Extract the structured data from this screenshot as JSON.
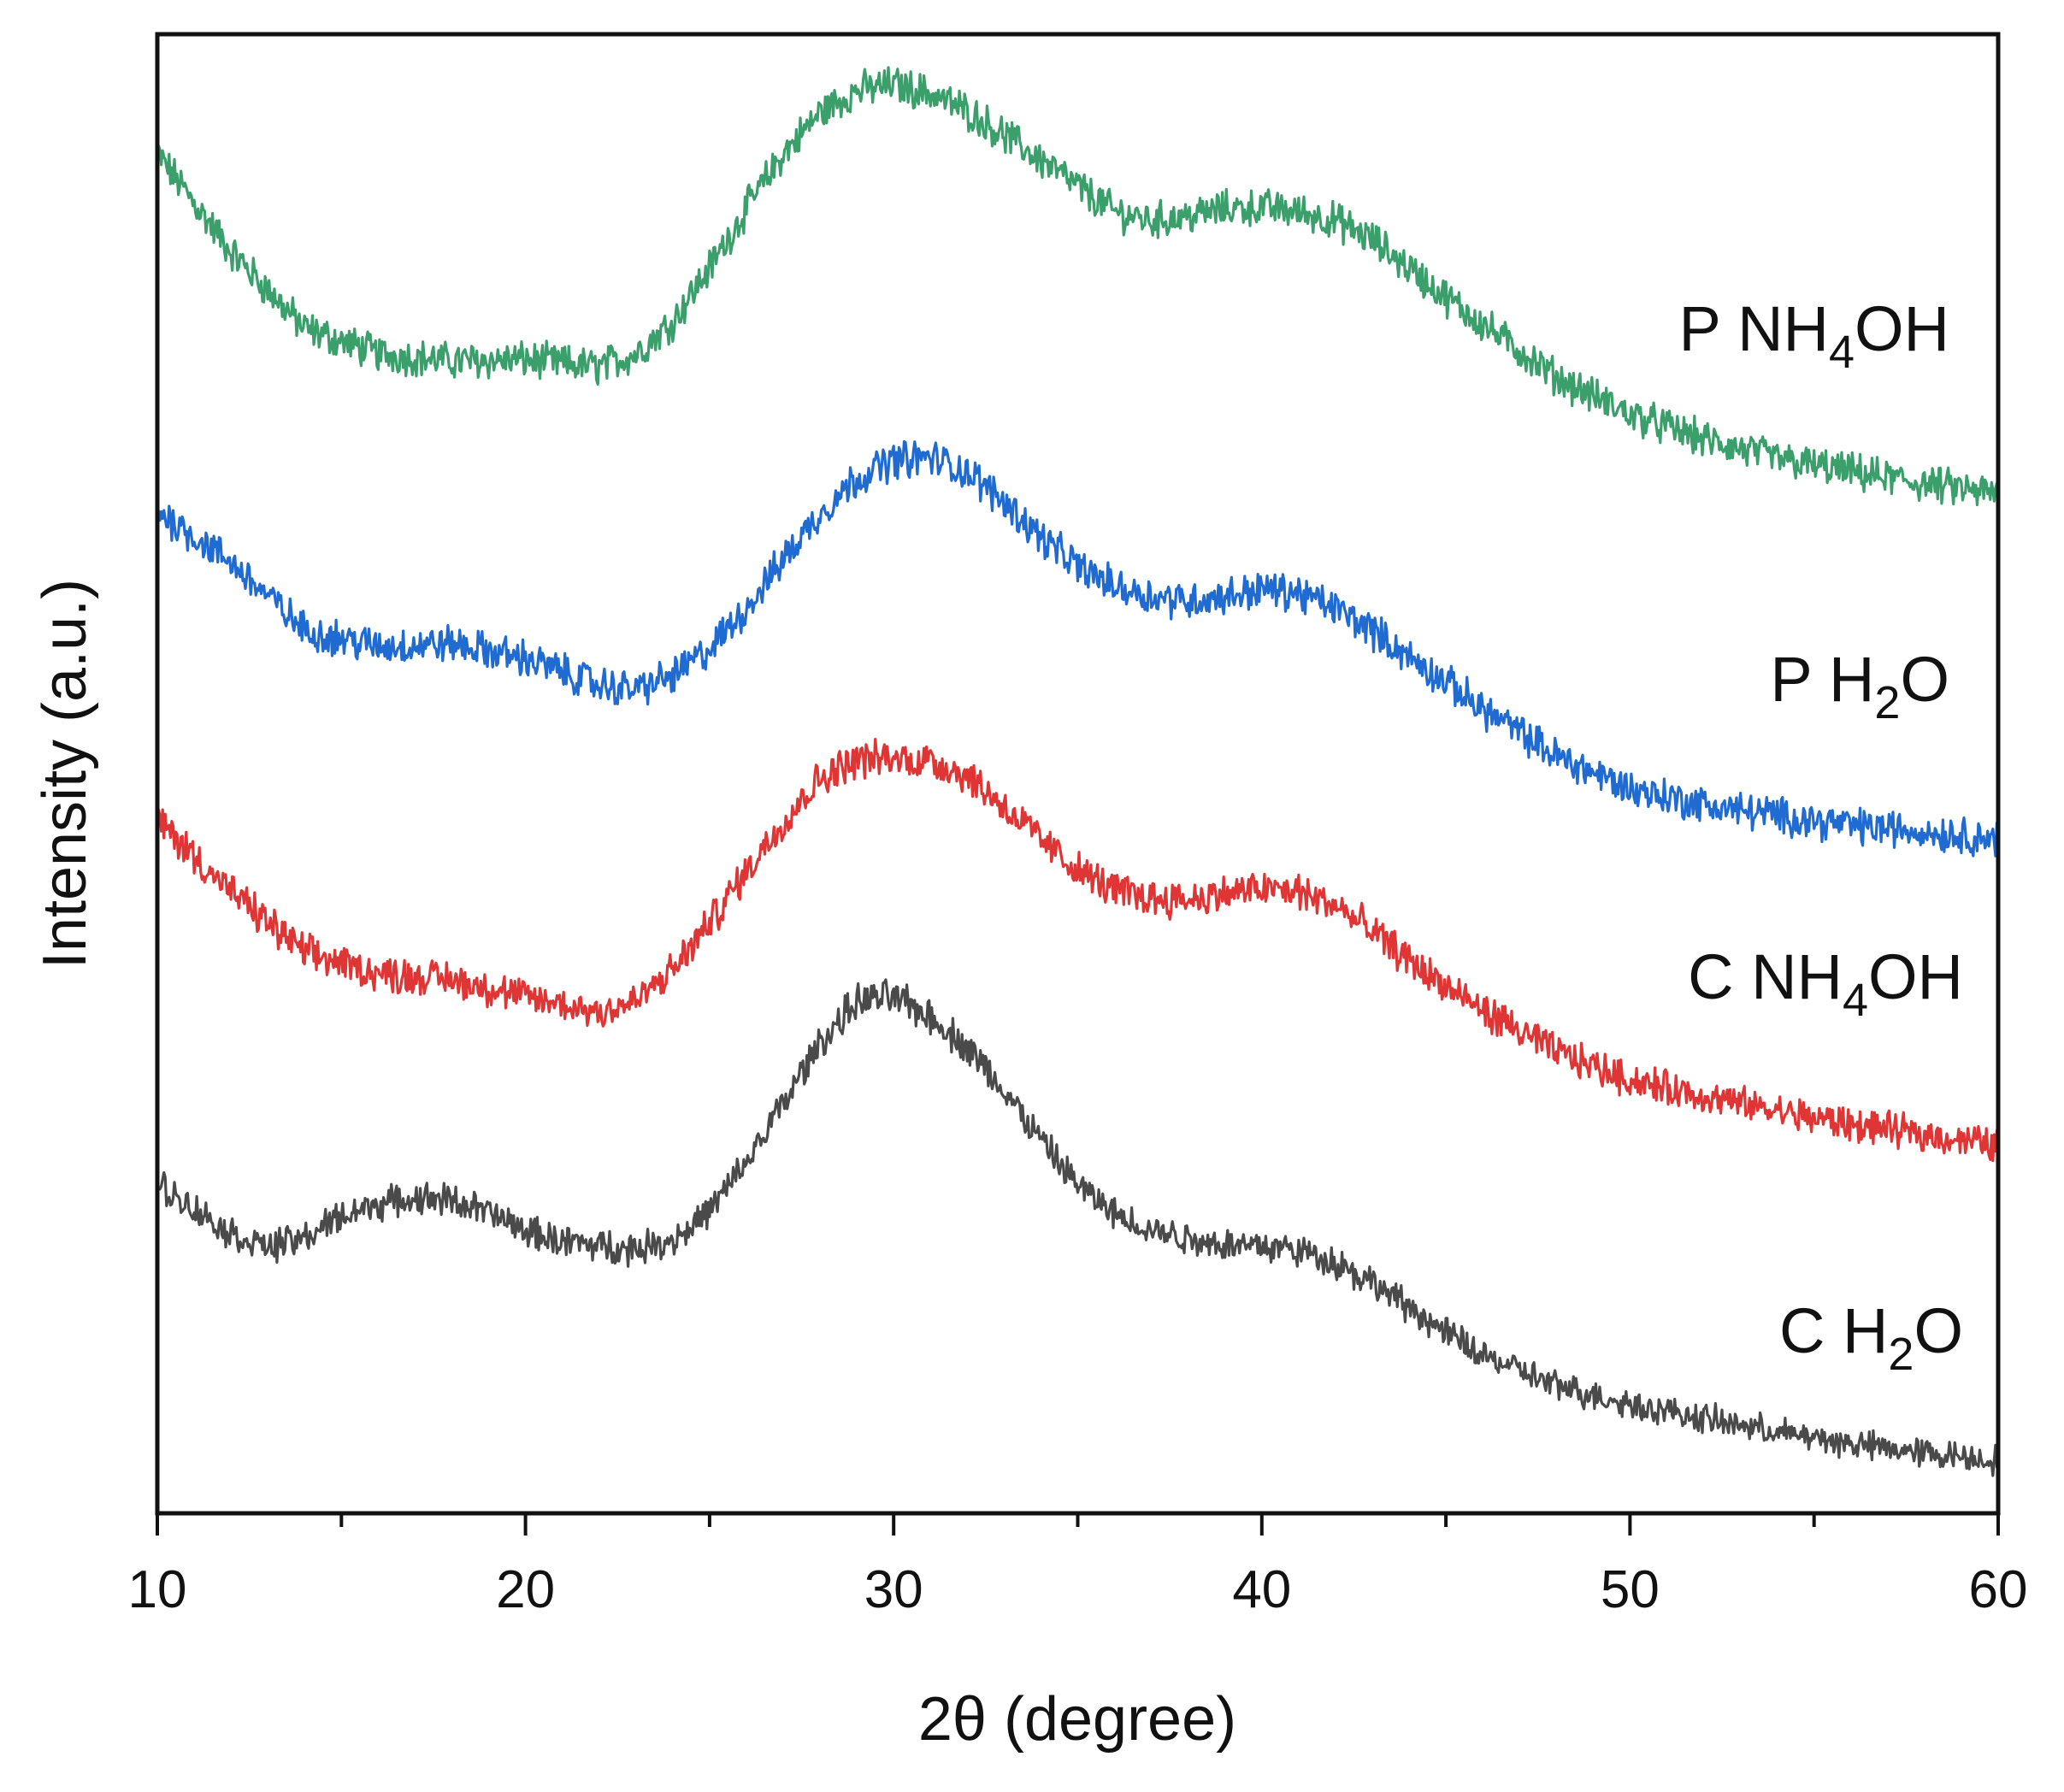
{
  "chart_data": {
    "type": "line",
    "title": "",
    "xlabel": "2θ (degree)",
    "ylabel": "Intensity (a.u.)",
    "xlim": [
      10,
      60
    ],
    "xticks": [
      10,
      20,
      30,
      40,
      50,
      60
    ],
    "ylim": [
      0,
      100
    ],
    "y_ticks_labeled": false,
    "legend_placement": "inline labels at right end of each curve",
    "series": [
      {
        "name": "P NH4OH",
        "label_main": "P NH",
        "label_sub": "4",
        "label_tail": "OH",
        "color": "#3a9f6a",
        "x": [
          10,
          12,
          14,
          16,
          18,
          20,
          22,
          23,
          24,
          25,
          26,
          27,
          28,
          29,
          30,
          31,
          32,
          33,
          34,
          35,
          36,
          37,
          38,
          39,
          40,
          41,
          42,
          43,
          44,
          45,
          46,
          48,
          50,
          52,
          54,
          56,
          58,
          60
        ],
        "y": [
          91.9,
          85.3,
          80.1,
          78.4,
          77.9,
          78.0,
          77.5,
          78.4,
          80.6,
          84.2,
          88.2,
          91.9,
          94.7,
          96.2,
          96.6,
          96.0,
          94.8,
          93.2,
          91.5,
          89.7,
          88.0,
          87.4,
          87.7,
          88.2,
          88.3,
          88.0,
          87.4,
          86.1,
          84.2,
          82.2,
          80.4,
          76.8,
          74.3,
          72.6,
          71.3,
          70.4,
          69.6,
          68.9
        ]
      },
      {
        "name": "P H2O",
        "label_main": "P H",
        "label_sub": "2",
        "label_tail": "O",
        "color": "#1f6bd1",
        "x": [
          10,
          12,
          14,
          16,
          18,
          20,
          22,
          23,
          24,
          25,
          26,
          27,
          28,
          29,
          30,
          31,
          32,
          33,
          34,
          35,
          36,
          37,
          38,
          39,
          40,
          41,
          42,
          43,
          44,
          45,
          46,
          48,
          50,
          52,
          54,
          56,
          58,
          60
        ],
        "y": [
          67.8,
          64.3,
          59.7,
          58.6,
          58.8,
          57.8,
          56.0,
          55.7,
          56.6,
          58.4,
          61.2,
          64.5,
          67.6,
          70.0,
          71.2,
          71.4,
          70.4,
          68.4,
          66.0,
          64.0,
          62.7,
          62.0,
          61.7,
          62.0,
          62.5,
          62.2,
          61.2,
          59.7,
          57.9,
          56.2,
          54.4,
          51.2,
          49.0,
          47.9,
          47.2,
          46.5,
          46.1,
          45.6
        ]
      },
      {
        "name": "C NH4OH",
        "label_main": "C NH",
        "label_sub": "4",
        "label_tail": "OH",
        "color": "#e03535",
        "x": [
          10,
          12,
          14,
          16,
          18,
          20,
          22,
          23,
          24,
          25,
          26,
          27,
          28,
          29,
          30,
          31,
          32,
          33,
          34,
          35,
          36,
          37,
          38,
          39,
          40,
          41,
          42,
          43,
          44,
          45,
          46,
          48,
          50,
          52,
          54,
          56,
          58,
          60
        ],
        "y": [
          46.9,
          42.0,
          37.9,
          36.5,
          36.1,
          34.9,
          33.9,
          34.6,
          36.7,
          39.9,
          43.4,
          46.8,
          49.7,
          51.0,
          51.0,
          50.9,
          49.9,
          47.8,
          45.5,
          43.5,
          42.1,
          41.6,
          41.5,
          41.9,
          42.2,
          42.0,
          41.1,
          39.3,
          37.4,
          35.6,
          34.0,
          31.2,
          29.3,
          28.2,
          27.2,
          26.3,
          25.6,
          24.9
        ]
      },
      {
        "name": "C H2O",
        "label_main": "C H",
        "label_sub": "2",
        "label_tail": "O",
        "color": "#4a4a4a",
        "x": [
          10,
          11,
          12,
          13,
          14,
          15,
          16,
          17,
          18,
          19,
          20,
          21,
          22,
          23,
          24,
          25,
          26,
          27,
          28,
          29,
          30,
          31,
          32,
          33,
          34,
          35,
          36,
          37,
          38,
          39,
          40,
          41,
          42,
          43,
          44,
          45,
          46,
          48,
          50,
          52,
          54,
          56,
          58,
          60
        ],
        "y": [
          22.3,
          20.6,
          18.9,
          18.0,
          18.6,
          20.1,
          20.9,
          21.3,
          21.2,
          20.3,
          19.1,
          18.4,
          18.1,
          17.9,
          18.5,
          20.4,
          23.7,
          27.7,
          31.8,
          34.6,
          34.9,
          33.6,
          31.5,
          28.6,
          25.2,
          22.2,
          20.2,
          19.2,
          18.6,
          18.2,
          18.1,
          17.8,
          17.0,
          15.6,
          13.9,
          12.2,
          10.7,
          8.6,
          7.4,
          6.4,
          5.5,
          4.7,
          4.1,
          3.6
        ]
      }
    ]
  }
}
